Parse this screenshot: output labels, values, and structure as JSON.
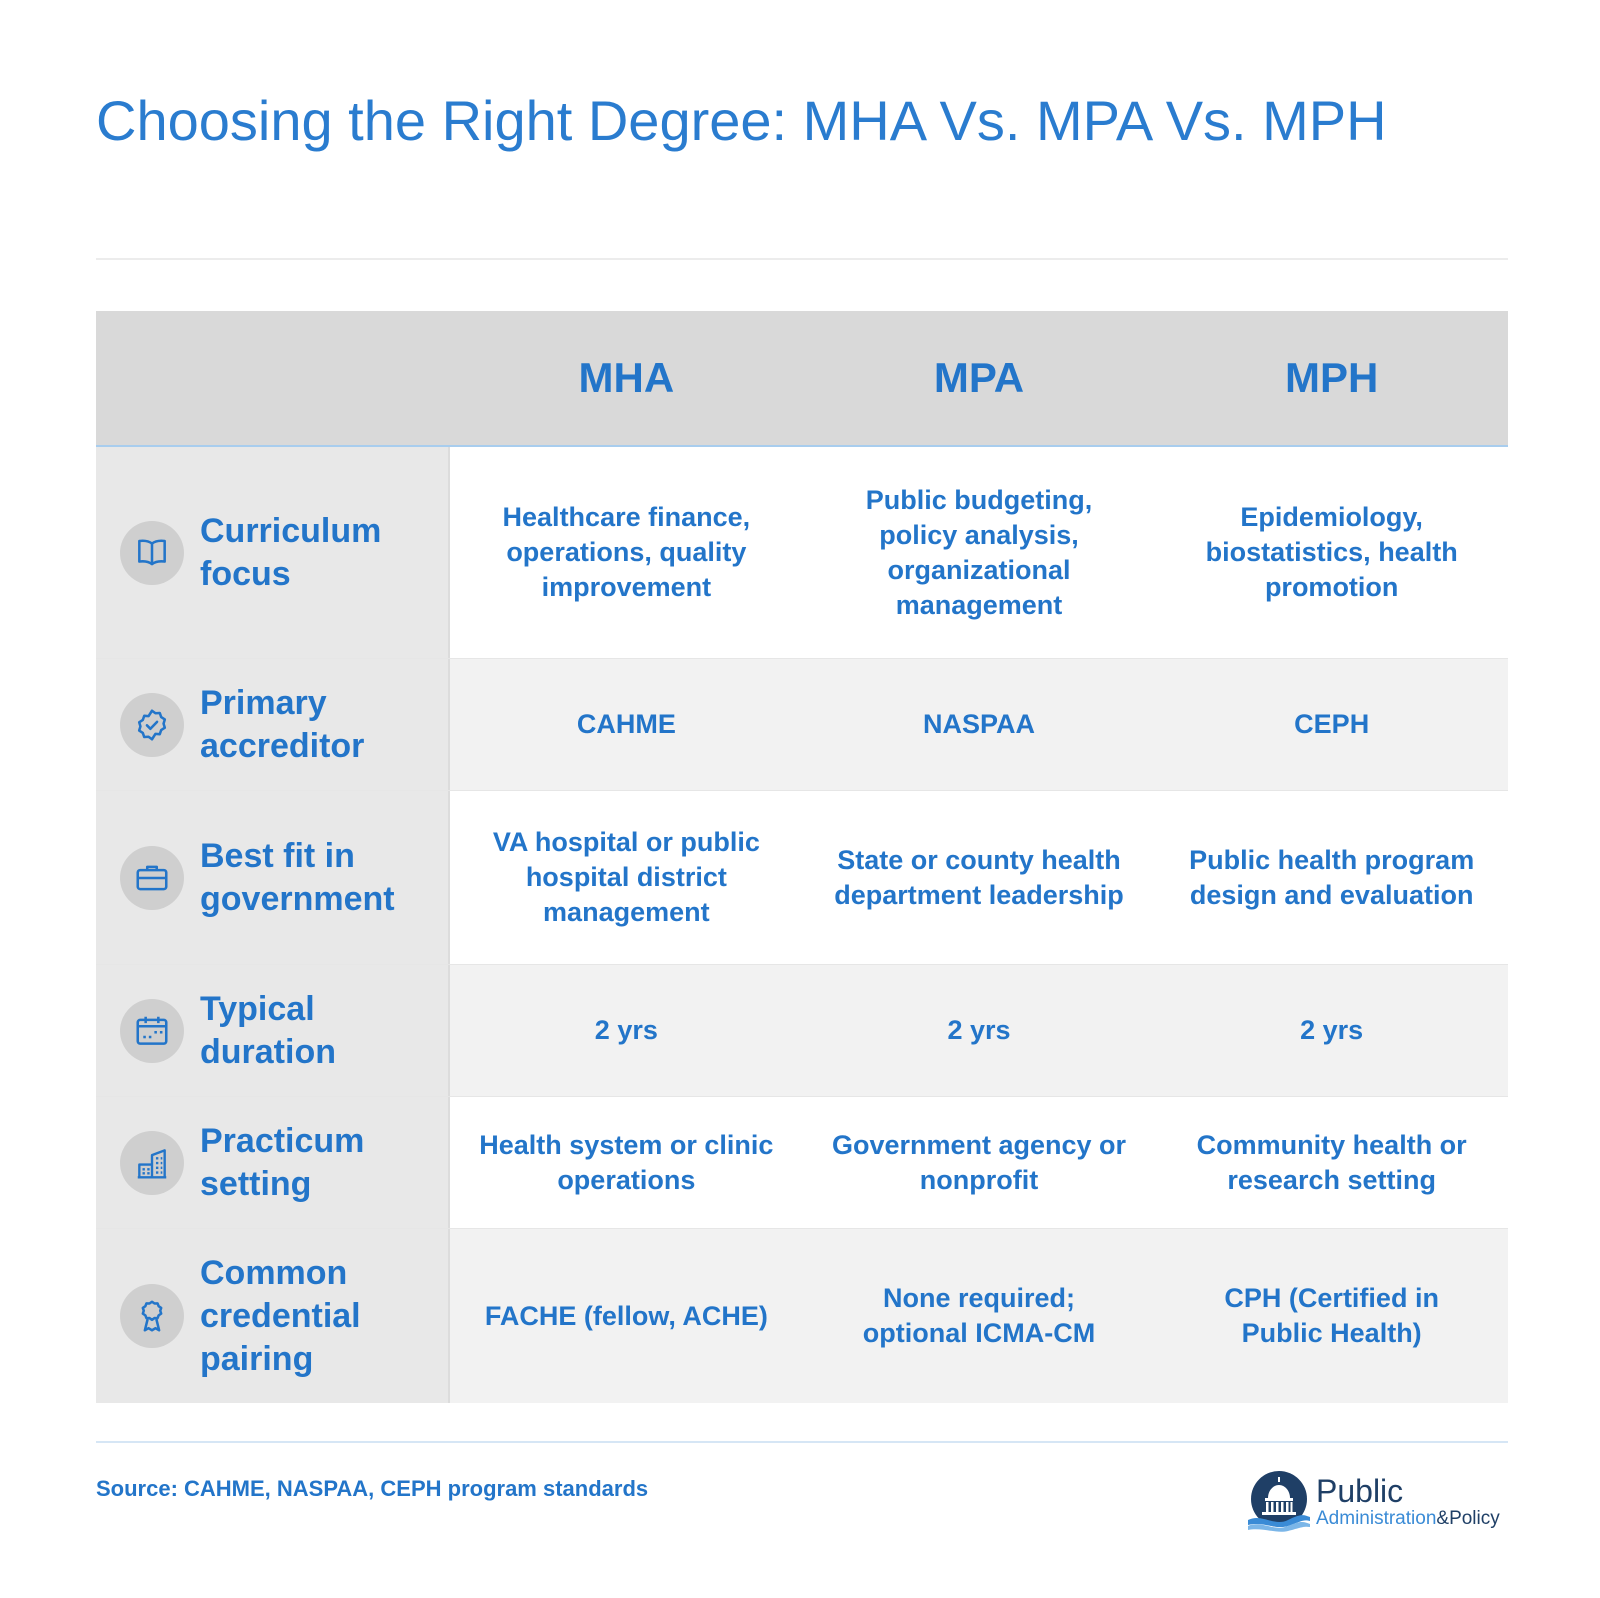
{
  "title": "Choosing the Right Degree: MHA Vs. MPA Vs. MPH",
  "columns": [
    "MHA",
    "MPA",
    "MPH"
  ],
  "rows": [
    {
      "label": "Curriculum focus",
      "icon": "book-icon",
      "cells": [
        "Healthcare finance, operations, quality improvement",
        "Public budgeting, policy analysis, organizational management",
        "Epidemiology, biostatistics, health promotion"
      ]
    },
    {
      "label": "Primary accreditor",
      "icon": "badge-check-icon",
      "cells": [
        "CAHME",
        "NASPAA",
        "CEPH"
      ]
    },
    {
      "label": "Best fit in government",
      "icon": "briefcase-icon",
      "cells": [
        "VA hospital or public hospital district management",
        "State or county health department leadership",
        "Public health program design and evaluation"
      ]
    },
    {
      "label": "Typical duration",
      "icon": "calendar-icon",
      "cells": [
        "2 yrs",
        "2 yrs",
        "2 yrs"
      ]
    },
    {
      "label": "Practicum setting",
      "icon": "buildings-icon",
      "cells": [
        "Health system or clinic operations",
        "Government agency or nonprofit",
        "Community health or research setting"
      ]
    },
    {
      "label": "Common credential pairing",
      "icon": "award-ribbon-icon",
      "cells": [
        "FACHE (fellow, ACHE)",
        "None required; optional ICMA-CM",
        "CPH (Certified in Public Health)"
      ]
    }
  ],
  "source": "Source: CAHME, NASPAA, CEPH program standards",
  "logo": {
    "line1": "Public",
    "line2a": "Administration",
    "line2b": "&Policy",
    "icon": "capitol-dome-icon"
  },
  "colors": {
    "accent": "#2375c9",
    "header_bg": "#d9d9d9",
    "rowhead_bg": "#e8e8e8",
    "alt_row_bg": "#f2f2f2"
  }
}
